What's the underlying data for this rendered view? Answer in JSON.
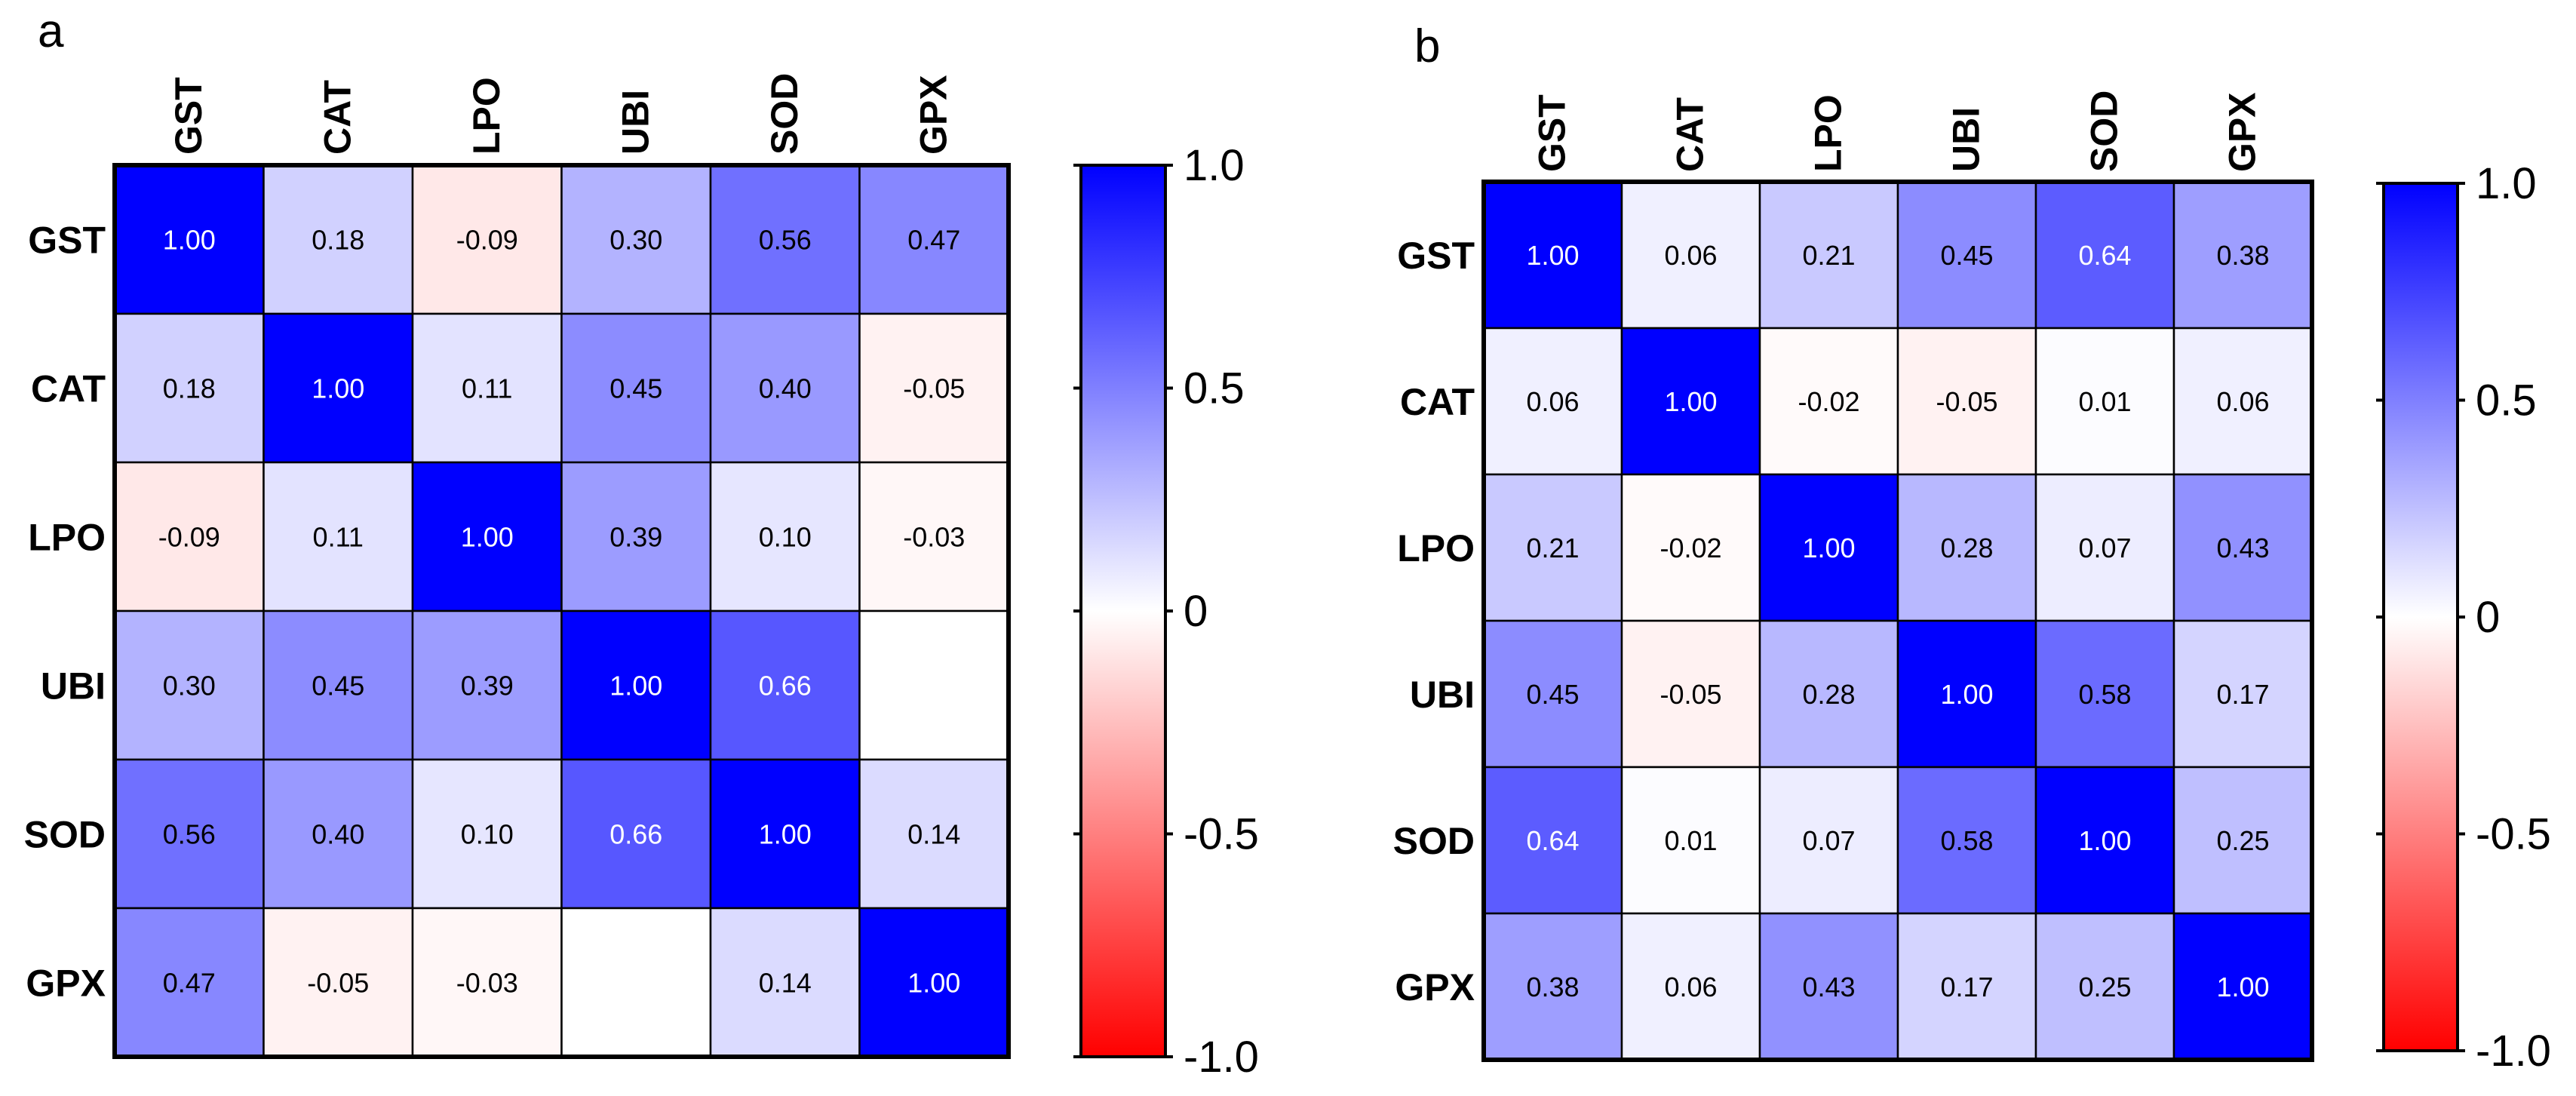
{
  "panels": [
    {
      "label": "a"
    },
    {
      "label": "b"
    }
  ],
  "chart_data": [
    {
      "type": "heatmap",
      "panel": "a",
      "x_categories": [
        "GST",
        "CAT",
        "LPO",
        "UBI",
        "SOD",
        "GPX"
      ],
      "y_categories": [
        "GST",
        "CAT",
        "LPO",
        "UBI",
        "SOD",
        "GPX"
      ],
      "values": [
        [
          1.0,
          0.18,
          -0.09,
          0.3,
          0.56,
          0.47
        ],
        [
          0.18,
          1.0,
          0.11,
          0.45,
          0.4,
          -0.05
        ],
        [
          -0.09,
          0.11,
          1.0,
          0.39,
          0.1,
          -0.03
        ],
        [
          0.3,
          0.45,
          0.39,
          1.0,
          0.66,
          null
        ],
        [
          0.56,
          0.4,
          0.1,
          0.66,
          1.0,
          0.14
        ],
        [
          0.47,
          -0.05,
          -0.03,
          null,
          0.14,
          1.0
        ]
      ],
      "colorbar": {
        "min": -1.0,
        "max": 1.0,
        "ticks": [
          "1.0",
          "0.5",
          "0",
          "-0.5",
          "-1.0"
        ],
        "colors": {
          "low": "#ff0000",
          "mid": "#ffffff",
          "high": "#0000ff"
        }
      }
    },
    {
      "type": "heatmap",
      "panel": "b",
      "x_categories": [
        "GST",
        "CAT",
        "LPO",
        "UBI",
        "SOD",
        "GPX"
      ],
      "y_categories": [
        "GST",
        "CAT",
        "LPO",
        "UBI",
        "SOD",
        "GPX"
      ],
      "values": [
        [
          1.0,
          0.06,
          0.21,
          0.45,
          0.64,
          0.38
        ],
        [
          0.06,
          1.0,
          -0.02,
          -0.05,
          0.01,
          0.06
        ],
        [
          0.21,
          -0.02,
          1.0,
          0.28,
          0.07,
          0.43
        ],
        [
          0.45,
          -0.05,
          0.28,
          1.0,
          0.58,
          0.17
        ],
        [
          0.64,
          0.01,
          0.07,
          0.58,
          1.0,
          0.25
        ],
        [
          0.38,
          0.06,
          0.43,
          0.17,
          0.25,
          1.0
        ]
      ],
      "colorbar": {
        "min": -1.0,
        "max": 1.0,
        "ticks": [
          "1.0",
          "0.5",
          "0",
          "-0.5",
          "-1.0"
        ],
        "colors": {
          "low": "#ff0000",
          "mid": "#ffffff",
          "high": "#0000ff"
        }
      }
    }
  ]
}
